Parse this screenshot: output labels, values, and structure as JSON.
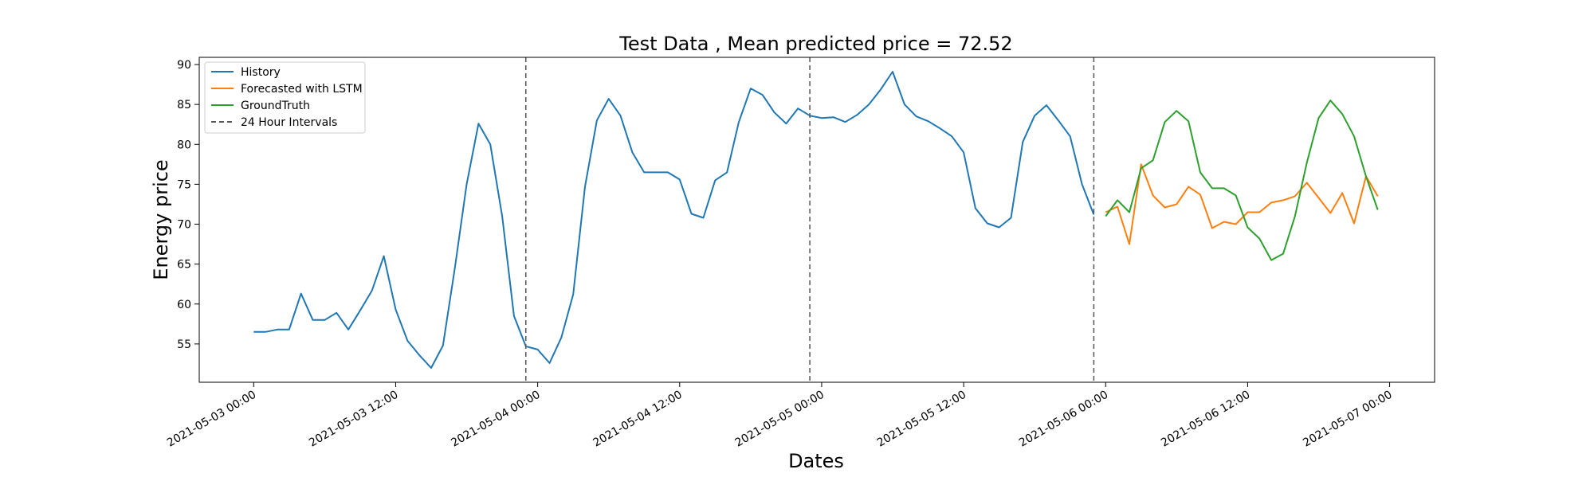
{
  "chart_data": {
    "type": "line",
    "title": "Test Data , Mean predicted price = 72.52",
    "xlabel": "Dates",
    "ylabel": "Energy price",
    "x_start": "2021-05-03 00:00",
    "x_step_hours": 1,
    "x_ticks": [
      "2021-05-03 00:00",
      "2021-05-03 12:00",
      "2021-05-04 00:00",
      "2021-05-04 12:00",
      "2021-05-05 00:00",
      "2021-05-05 12:00",
      "2021-05-06 00:00",
      "2021-05-06 12:00",
      "2021-05-07 00:00"
    ],
    "y_ticks": [
      55,
      60,
      65,
      70,
      75,
      80,
      85,
      90
    ],
    "xlim": [
      "2021-05-02 19:24",
      "2021-05-07 03:48"
    ],
    "ylim": [
      50.2,
      90.9
    ],
    "grid": false,
    "legend_position": "top-left",
    "colors": {
      "history": "#1f77b4",
      "forecast": "#ff7f0e",
      "groundtruth": "#2ca02c",
      "intervals": "#555555"
    },
    "series": [
      {
        "name": "History",
        "x_offset_hours": 0,
        "values": [
          56.5,
          56.5,
          56.8,
          56.8,
          61.3,
          58.0,
          58.0,
          58.9,
          56.8,
          59.2,
          61.7,
          66.0,
          59.3,
          55.4,
          53.6,
          52.0,
          54.8,
          64.5,
          75.0,
          82.6,
          80.0,
          71.0,
          58.5,
          54.7,
          54.3,
          52.6,
          55.8,
          61.2,
          74.7,
          83.0,
          85.7,
          83.6,
          79.0,
          76.5,
          76.5,
          76.5,
          75.6,
          71.3,
          70.8,
          75.5,
          76.5,
          82.8,
          87.0,
          86.2,
          84.0,
          82.6,
          84.5,
          83.6,
          83.3,
          83.4,
          82.8,
          83.7,
          85.0,
          86.9,
          89.1,
          85.0,
          83.5,
          82.9,
          82.0,
          81.0,
          79.0,
          72.0,
          70.1,
          69.6,
          70.8,
          80.3,
          83.6,
          84.9,
          83.0,
          81.0,
          75.0,
          71.2
        ]
      },
      {
        "name": "Forecasted with LSTM",
        "x_offset_hours": 72,
        "values": [
          71.5,
          72.2,
          67.5,
          77.5,
          73.6,
          72.1,
          72.5,
          74.7,
          73.7,
          69.5,
          70.3,
          70.0,
          71.5,
          71.5,
          72.7,
          73.0,
          73.5,
          75.2,
          73.3,
          71.4,
          73.9,
          70.1,
          76.0,
          73.5
        ]
      },
      {
        "name": "GroundTruth",
        "x_offset_hours": 72,
        "values": [
          71.0,
          73.0,
          71.5,
          77.0,
          78.0,
          82.8,
          84.2,
          82.9,
          76.5,
          74.5,
          74.5,
          73.6,
          69.6,
          68.2,
          65.5,
          66.3,
          71.0,
          77.7,
          83.3,
          85.5,
          83.8,
          81.0,
          76.0,
          71.8
        ]
      },
      {
        "name": "24 Hour Intervals",
        "style": "dashed",
        "x": [
          "2021-05-03 23:00",
          "2021-05-04 23:00",
          "2021-05-05 23:00"
        ]
      }
    ]
  }
}
